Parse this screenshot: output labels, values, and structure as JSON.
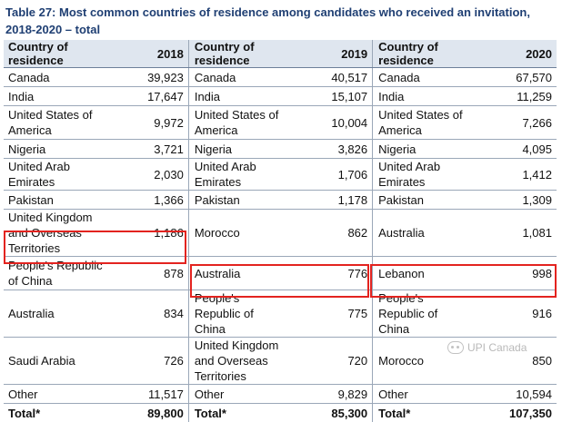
{
  "title": "Table 27: Most common countries of residence among candidates who received an invitation, 2018-2020 – total",
  "headers": {
    "country": "Country of residence",
    "y2018": "2018",
    "y2019": "2019",
    "y2020": "2020"
  },
  "rows": [
    {
      "c1": "Canada",
      "v1": "39,923",
      "c2": "Canada",
      "v2": "40,517",
      "c3": "Canada",
      "v3": "67,570"
    },
    {
      "c1": "India",
      "v1": "17,647",
      "c2": "India",
      "v2": "15,107",
      "c3": "India",
      "v3": "11,259"
    },
    {
      "c1": "United States of America",
      "v1": "9,972",
      "c2": "United States of America",
      "v2": "10,004",
      "c3": "United States of America",
      "v3": "7,266"
    },
    {
      "c1": "Nigeria",
      "v1": "3,721",
      "c2": "Nigeria",
      "v2": "3,826",
      "c3": "Nigeria",
      "v3": "4,095"
    },
    {
      "c1": "United Arab Emirates",
      "v1": "2,030",
      "c2": "United Arab Emirates",
      "v2": "1,706",
      "c3": "United Arab Emirates",
      "v3": "1,412"
    },
    {
      "c1": "Pakistan",
      "v1": "1,366",
      "c2": "Pakistan",
      "v2": "1,178",
      "c3": "Pakistan",
      "v3": "1,309"
    },
    {
      "c1": "United Kingdom and Overseas Territories",
      "v1": "1,186",
      "c2": "Morocco",
      "v2": "862",
      "c3": "Australia",
      "v3": "1,081"
    },
    {
      "c1": "People's Republic of China",
      "v1": "878",
      "c2": "Australia",
      "v2": "776",
      "c3": "Lebanon",
      "v3": "998"
    },
    {
      "c1": "Australia",
      "v1": "834",
      "c2": "People's Republic of China",
      "v2": "775",
      "c3": "People's Republic of China",
      "v3": "916"
    },
    {
      "c1": "Saudi Arabia",
      "v1": "726",
      "c2": "United Kingdom and Overseas Territories",
      "v2": "720",
      "c3": "Morocco",
      "v3": "850"
    },
    {
      "c1": "Other",
      "v1": "11,517",
      "c2": "Other",
      "v2": "9,829",
      "c3": "Other",
      "v3": "10,594"
    }
  ],
  "total": {
    "label": "Total*",
    "v1": "89,800",
    "v2": "85,300",
    "v3": "107,350"
  },
  "highlight_color": "#e3231f",
  "watermark": {
    "text": "UPI Canada",
    "icon": "wechat-icon"
  }
}
